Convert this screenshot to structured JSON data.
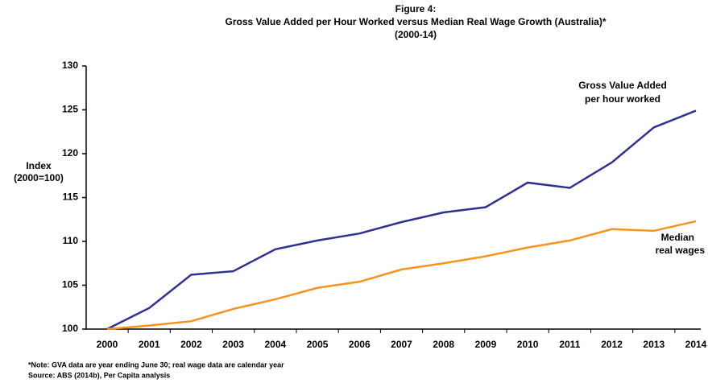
{
  "chart_data": {
    "type": "line",
    "title": [
      "Figure 4:",
      "Gross Value Added per Hour Worked versus Median Real Wage Growth (Australia)*",
      "(2000-14)"
    ],
    "ylabel": [
      "Index",
      "(2000=100)"
    ],
    "categories": [
      "2000",
      "2001",
      "2002",
      "2003",
      "2004",
      "2005",
      "2006",
      "2007",
      "2008",
      "2009",
      "2010",
      "2011",
      "2012",
      "2013",
      "2014"
    ],
    "series": [
      {
        "color": "#2e3192",
        "values": [
          100,
          102.4,
          106.2,
          106.6,
          109.1,
          110.1,
          110.9,
          112.2,
          113.3,
          113.9,
          116.7,
          116.1,
          119.0,
          123.0,
          124.9
        ]
      },
      {
        "color": "#f7931e",
        "values": [
          100,
          100.4,
          100.9,
          102.3,
          103.4,
          104.7,
          105.4,
          106.8,
          107.5,
          108.3,
          109.3,
          110.1,
          111.4,
          111.2,
          112.3
        ]
      }
    ],
    "annotations": [
      [
        "Gross Value Added",
        "per hour worked"
      ],
      [
        "Median",
        "real wages"
      ]
    ],
    "ylim": [
      100,
      130
    ],
    "yticks": [
      100,
      105,
      110,
      115,
      120,
      125,
      130
    ],
    "grid": false,
    "notes": [
      "*Note: GVA data are year ending June 30; real wage data are calendar year",
      "Source: ABS (2014b), Per Capita analysis"
    ]
  }
}
